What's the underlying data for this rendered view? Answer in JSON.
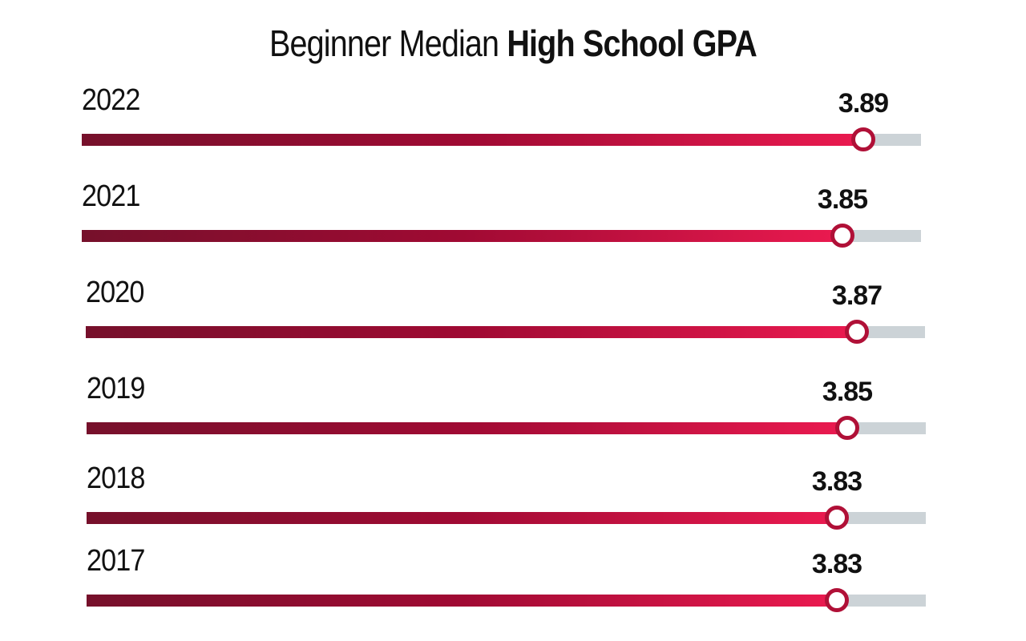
{
  "title": {
    "light": "Beginner Median",
    "bold": "High School GPA"
  },
  "chart_data": {
    "type": "bar",
    "title": "Beginner Median High School GPA",
    "categories": [
      "2022",
      "2021",
      "2020",
      "2019",
      "2018",
      "2017"
    ],
    "values": [
      3.89,
      3.85,
      3.87,
      3.85,
      3.83,
      3.83
    ],
    "value_labels": [
      "3.89",
      "3.85",
      "3.87",
      "3.85",
      "3.83",
      "3.83"
    ],
    "orientation": "horizontal",
    "xlim": [
      2.4,
      4.0
    ],
    "xlabel": "",
    "ylabel": "",
    "grid": false,
    "legend": "none",
    "colors": {
      "fill_start": "#76102b",
      "fill_end": "#eb1a50",
      "track": "#ccd3d7",
      "marker_ring": "#b01037"
    }
  }
}
